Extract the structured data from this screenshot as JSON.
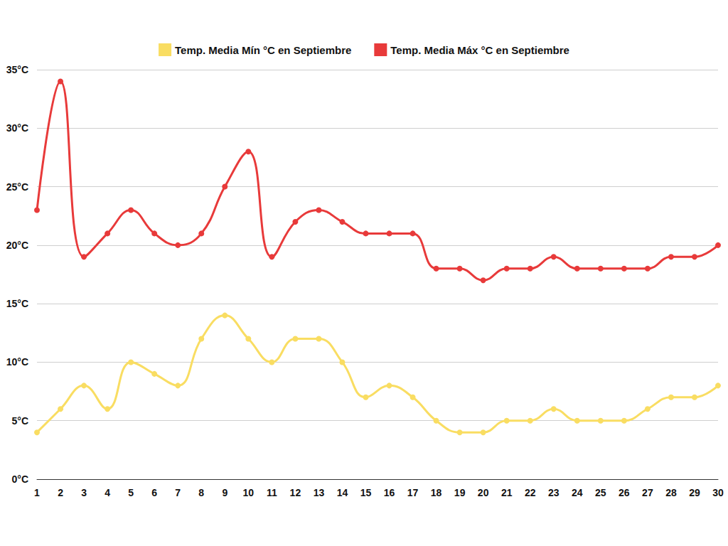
{
  "chart_data": {
    "type": "line",
    "categories": [
      "1",
      "2",
      "3",
      "4",
      "5",
      "6",
      "7",
      "8",
      "9",
      "10",
      "11",
      "12",
      "13",
      "14",
      "15",
      "16",
      "17",
      "18",
      "19",
      "20",
      "21",
      "22",
      "23",
      "24",
      "25",
      "26",
      "27",
      "28",
      "29",
      "30"
    ],
    "series": [
      {
        "name": "Temp. Media Mín °C en Septiembre",
        "color": "#f9dd62",
        "values": [
          4,
          6,
          8,
          6,
          10,
          9,
          8,
          12,
          14,
          12,
          10,
          12,
          12,
          10,
          7,
          8,
          7,
          5,
          4,
          4,
          5,
          5,
          6,
          5,
          5,
          5,
          6,
          7,
          7,
          8
        ]
      },
      {
        "name": "Temp. Media Máx °C en Septiembre",
        "color": "#e83a3a",
        "values": [
          23,
          34,
          19,
          21,
          23,
          21,
          20,
          21,
          25,
          28,
          19,
          22,
          23,
          22,
          21,
          21,
          21,
          18,
          18,
          17,
          18,
          18,
          19,
          18,
          18,
          18,
          18,
          19,
          19,
          20
        ]
      }
    ],
    "ylim": [
      0,
      35
    ],
    "yticks": [
      {
        "value": 0,
        "label": "0°C"
      },
      {
        "value": 5,
        "label": "5°C"
      },
      {
        "value": 10,
        "label": "10°C"
      },
      {
        "value": 15,
        "label": "15°C"
      },
      {
        "value": 20,
        "label": "20°C"
      },
      {
        "value": 25,
        "label": "25°C"
      },
      {
        "value": 30,
        "label": "30°C"
      },
      {
        "value": 35,
        "label": "35°C"
      }
    ],
    "grid": true,
    "legend": "top",
    "marker": "circle",
    "line_style": "solid"
  }
}
